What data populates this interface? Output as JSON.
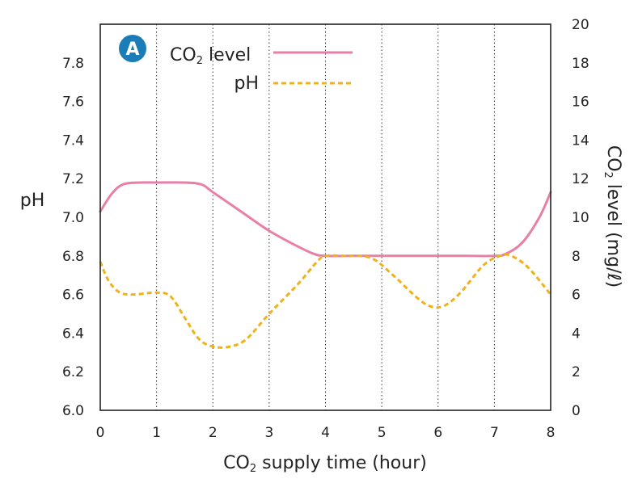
{
  "chart_data": {
    "type": "line",
    "badge": "A",
    "xlabel": {
      "pre": "CO",
      "sub": "2",
      "post": " supply time (hour)"
    },
    "ylabel_left": "pH",
    "ylabel_right": {
      "pre": "CO",
      "sub": "2",
      "post": " level (mg/ℓ)"
    },
    "xlim": [
      0,
      8
    ],
    "ylim_left": [
      6.0,
      8.0
    ],
    "ylim_right": [
      0,
      20
    ],
    "x_ticks": [
      "0",
      "1",
      "2",
      "3",
      "4",
      "5",
      "6",
      "7",
      "8"
    ],
    "y_left_ticks": [
      "6.0",
      "6.2",
      "6.4",
      "6.6",
      "6.8",
      "7.0",
      "7.2",
      "7.4",
      "7.6",
      "7.8"
    ],
    "y_right_ticks": [
      "0",
      "2",
      "4",
      "6",
      "8",
      "10",
      "12",
      "14",
      "16",
      "18",
      "20"
    ],
    "grid": {
      "vertical_dotted": true,
      "horizontal": false
    },
    "legend_position": "top-left",
    "series": [
      {
        "name": {
          "pre": "CO",
          "sub": "2",
          "post": " level"
        },
        "axis": "right",
        "color": "#e97fa6",
        "style": "solid",
        "points": [
          [
            0,
            10.3
          ],
          [
            0.2,
            11.2
          ],
          [
            0.4,
            11.7
          ],
          [
            0.7,
            11.8
          ],
          [
            1.0,
            11.8
          ],
          [
            1.5,
            11.8
          ],
          [
            1.8,
            11.7
          ],
          [
            2.0,
            11.3
          ],
          [
            2.5,
            10.3
          ],
          [
            3.0,
            9.3
          ],
          [
            3.5,
            8.5
          ],
          [
            3.8,
            8.1
          ],
          [
            4.0,
            8.0
          ],
          [
            4.5,
            8.0
          ],
          [
            5.0,
            8.0
          ],
          [
            5.5,
            8.0
          ],
          [
            6.0,
            8.0
          ],
          [
            6.5,
            8.0
          ],
          [
            7.0,
            8.0
          ],
          [
            7.2,
            8.1
          ],
          [
            7.5,
            8.7
          ],
          [
            7.8,
            10.0
          ],
          [
            8.0,
            11.3
          ]
        ]
      },
      {
        "name": "pH",
        "axis": "left",
        "color": "#f0b21a",
        "style": "dashed",
        "points": [
          [
            0,
            6.77
          ],
          [
            0.15,
            6.67
          ],
          [
            0.35,
            6.61
          ],
          [
            0.6,
            6.6
          ],
          [
            1.0,
            6.61
          ],
          [
            1.25,
            6.59
          ],
          [
            1.5,
            6.48
          ],
          [
            1.75,
            6.37
          ],
          [
            2.0,
            6.33
          ],
          [
            2.3,
            6.33
          ],
          [
            2.6,
            6.37
          ],
          [
            3.0,
            6.5
          ],
          [
            3.5,
            6.65
          ],
          [
            3.85,
            6.77
          ],
          [
            4.0,
            6.8
          ],
          [
            4.3,
            6.8
          ],
          [
            4.8,
            6.79
          ],
          [
            5.2,
            6.7
          ],
          [
            5.6,
            6.59
          ],
          [
            5.85,
            6.54
          ],
          [
            6.1,
            6.54
          ],
          [
            6.4,
            6.61
          ],
          [
            6.8,
            6.75
          ],
          [
            7.1,
            6.8
          ],
          [
            7.3,
            6.8
          ],
          [
            7.6,
            6.74
          ],
          [
            8.0,
            6.6
          ]
        ]
      }
    ]
  }
}
